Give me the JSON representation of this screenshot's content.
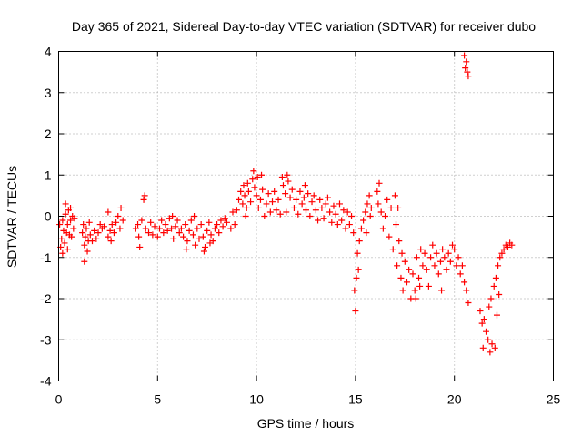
{
  "chart_data": {
    "type": "scatter",
    "title": "Day 365 of 2021, Sidereal Day-to-day VTEC variation (SDTVAR) for receiver dubo",
    "xlabel": "GPS time / hours",
    "ylabel": "SDTVAR / TECUs",
    "xlim": [
      0,
      25
    ],
    "ylim": [
      -4,
      4
    ],
    "xticks": [
      0,
      5,
      10,
      15,
      20,
      25
    ],
    "yticks": [
      -4,
      -3,
      -2,
      -1,
      0,
      1,
      2,
      3,
      4
    ],
    "grid": true,
    "marker": "+",
    "color": "#ff0000",
    "series": [
      {
        "name": "SDTVAR",
        "points": [
          [
            0.05,
            -0.2
          ],
          [
            0.1,
            -0.75
          ],
          [
            0.15,
            -0.55
          ],
          [
            0.2,
            -0.1
          ],
          [
            0.25,
            -0.35
          ],
          [
            0.3,
            -0.65
          ],
          [
            0.35,
            0.05
          ],
          [
            0.4,
            -0.4
          ],
          [
            0.45,
            -0.2
          ],
          [
            0.5,
            0.15
          ],
          [
            0.55,
            -0.45
          ],
          [
            0.6,
            -0.1
          ],
          [
            0.65,
            -0.5
          ],
          [
            0.7,
            0.0
          ],
          [
            0.75,
            -0.3
          ],
          [
            0.8,
            -0.05
          ],
          [
            0.35,
            0.3
          ],
          [
            0.45,
            -0.8
          ],
          [
            0.6,
            0.2
          ],
          [
            0.2,
            -0.9
          ],
          [
            1.2,
            -0.4
          ],
          [
            1.25,
            -0.2
          ],
          [
            1.3,
            -0.7
          ],
          [
            1.3,
            -1.1
          ],
          [
            1.35,
            -0.5
          ],
          [
            1.4,
            -0.3
          ],
          [
            1.5,
            -0.6
          ],
          [
            1.55,
            -0.15
          ],
          [
            1.6,
            -0.45
          ],
          [
            1.7,
            -0.6
          ],
          [
            1.8,
            -0.35
          ],
          [
            1.9,
            -0.55
          ],
          [
            2.0,
            -0.4
          ],
          [
            2.1,
            -0.2
          ],
          [
            2.2,
            -0.3
          ],
          [
            2.3,
            -0.25
          ],
          [
            2.5,
            -0.5
          ],
          [
            2.6,
            -0.35
          ],
          [
            2.7,
            -0.2
          ],
          [
            2.5,
            0.1
          ],
          [
            2.8,
            -0.4
          ],
          [
            2.9,
            -0.15
          ],
          [
            3.0,
            0.0
          ],
          [
            3.1,
            -0.3
          ],
          [
            3.15,
            0.2
          ],
          [
            3.25,
            -0.1
          ],
          [
            1.45,
            -0.85
          ],
          [
            2.65,
            -0.6
          ],
          [
            3.9,
            -0.3
          ],
          [
            4.0,
            -0.2
          ],
          [
            4.05,
            -0.5
          ],
          [
            4.1,
            -0.75
          ],
          [
            4.2,
            -0.1
          ],
          [
            4.3,
            0.4
          ],
          [
            4.35,
            0.5
          ],
          [
            4.4,
            -0.3
          ],
          [
            4.55,
            -0.4
          ],
          [
            4.65,
            -0.15
          ],
          [
            4.75,
            -0.45
          ],
          [
            4.85,
            -0.25
          ],
          [
            5.0,
            -0.5
          ],
          [
            5.1,
            -0.3
          ],
          [
            5.2,
            -0.1
          ],
          [
            5.3,
            -0.4
          ],
          [
            5.4,
            -0.2
          ],
          [
            5.5,
            -0.35
          ],
          [
            5.6,
            -0.05
          ],
          [
            5.7,
            -0.3
          ],
          [
            5.8,
            -0.55
          ],
          [
            5.9,
            -0.25
          ],
          [
            6.0,
            -0.1
          ],
          [
            6.1,
            -0.4
          ],
          [
            6.2,
            -0.3
          ],
          [
            6.3,
            -0.5
          ],
          [
            6.4,
            -0.2
          ],
          [
            6.5,
            -0.6
          ],
          [
            6.6,
            -0.35
          ],
          [
            6.7,
            -0.1
          ],
          [
            6.8,
            -0.45
          ],
          [
            6.9,
            -0.7
          ],
          [
            7.0,
            -0.3
          ],
          [
            7.1,
            -0.55
          ],
          [
            7.2,
            -0.2
          ],
          [
            7.3,
            -0.5
          ],
          [
            7.4,
            -0.75
          ],
          [
            7.5,
            -0.35
          ],
          [
            7.6,
            -0.15
          ],
          [
            7.7,
            -0.45
          ],
          [
            7.8,
            -0.6
          ],
          [
            7.9,
            -0.3
          ],
          [
            8.0,
            -0.2
          ],
          [
            8.1,
            -0.4
          ],
          [
            8.2,
            -0.1
          ],
          [
            8.3,
            -0.25
          ],
          [
            8.4,
            -0.05
          ],
          [
            8.5,
            -0.15
          ],
          [
            6.45,
            -0.8
          ],
          [
            7.35,
            -0.85
          ],
          [
            5.75,
            0.0
          ],
          [
            6.85,
            0.0
          ],
          [
            7.65,
            -0.65
          ],
          [
            8.7,
            -0.3
          ],
          [
            8.8,
            0.1
          ],
          [
            8.9,
            -0.2
          ],
          [
            9.0,
            0.15
          ],
          [
            9.1,
            0.4
          ],
          [
            9.2,
            0.6
          ],
          [
            9.3,
            0.3
          ],
          [
            9.35,
            0.75
          ],
          [
            9.4,
            0.5
          ],
          [
            9.5,
            0.2
          ],
          [
            9.55,
            0.8
          ],
          [
            9.6,
            0.6
          ],
          [
            9.7,
            0.35
          ],
          [
            9.8,
            0.9
          ],
          [
            9.85,
            1.1
          ],
          [
            9.9,
            0.7
          ],
          [
            10.0,
            0.5
          ],
          [
            10.05,
            0.95
          ],
          [
            10.1,
            0.2
          ],
          [
            10.2,
            0.4
          ],
          [
            10.3,
            0.65
          ],
          [
            10.4,
            0.0
          ],
          [
            10.5,
            0.3
          ],
          [
            10.6,
            0.55
          ],
          [
            10.7,
            0.1
          ],
          [
            10.8,
            0.35
          ],
          [
            10.9,
            0.6
          ],
          [
            11.0,
            0.15
          ],
          [
            11.1,
            0.4
          ],
          [
            11.2,
            0.05
          ],
          [
            11.3,
            0.95
          ],
          [
            11.35,
            0.75
          ],
          [
            11.45,
            0.55
          ],
          [
            11.5,
            0.1
          ],
          [
            11.6,
            0.85
          ],
          [
            11.7,
            0.45
          ],
          [
            11.8,
            0.65
          ],
          [
            11.9,
            0.2
          ],
          [
            12.0,
            0.4
          ],
          [
            12.1,
            0.05
          ],
          [
            12.2,
            0.6
          ],
          [
            12.3,
            0.3
          ],
          [
            12.4,
            0.45
          ],
          [
            12.5,
            0.15
          ],
          [
            12.6,
            0.55
          ],
          [
            12.7,
            0.0
          ],
          [
            12.8,
            0.35
          ],
          [
            12.9,
            0.5
          ],
          [
            13.0,
            0.15
          ],
          [
            13.1,
            -0.1
          ],
          [
            13.2,
            0.4
          ],
          [
            13.3,
            0.2
          ],
          [
            13.4,
            -0.05
          ],
          [
            13.5,
            0.3
          ],
          [
            13.6,
            0.45
          ],
          [
            13.7,
            0.1
          ],
          [
            13.8,
            -0.15
          ],
          [
            13.9,
            0.25
          ],
          [
            14.0,
            0.05
          ],
          [
            14.1,
            -0.2
          ],
          [
            14.2,
            0.3
          ],
          [
            14.3,
            -0.1
          ],
          [
            14.4,
            0.15
          ],
          [
            14.5,
            -0.3
          ],
          [
            14.6,
            0.1
          ],
          [
            14.7,
            -0.2
          ],
          [
            14.8,
            0.0
          ],
          [
            14.9,
            -0.4
          ],
          [
            11.55,
            1.0
          ],
          [
            12.45,
            0.75
          ],
          [
            9.45,
            0.0
          ],
          [
            10.25,
            1.0
          ],
          [
            14.95,
            -1.8
          ],
          [
            15.0,
            -2.3
          ],
          [
            15.05,
            -1.5
          ],
          [
            15.1,
            -0.9
          ],
          [
            15.15,
            -1.3
          ],
          [
            15.2,
            -0.6
          ],
          [
            15.3,
            -0.3
          ],
          [
            15.4,
            -0.1
          ],
          [
            15.5,
            0.1
          ],
          [
            15.55,
            -0.4
          ],
          [
            15.6,
            0.3
          ],
          [
            15.7,
            0.5
          ],
          [
            15.75,
            0.0
          ],
          [
            15.8,
            0.2
          ],
          [
            16.1,
            0.6
          ],
          [
            16.15,
            0.3
          ],
          [
            16.2,
            0.8
          ],
          [
            16.3,
            0.1
          ],
          [
            16.4,
            -0.3
          ],
          [
            16.5,
            0.0
          ],
          [
            16.6,
            0.4
          ],
          [
            16.7,
            -0.5
          ],
          [
            16.8,
            0.2
          ],
          [
            16.9,
            -0.8
          ],
          [
            17.0,
            0.5
          ],
          [
            17.05,
            -0.2
          ],
          [
            17.1,
            -1.2
          ],
          [
            17.2,
            -0.6
          ],
          [
            17.3,
            -1.5
          ],
          [
            17.35,
            -0.9
          ],
          [
            17.4,
            -1.8
          ],
          [
            17.5,
            -1.1
          ],
          [
            17.6,
            -1.6
          ],
          [
            17.7,
            -1.3
          ],
          [
            17.8,
            -2.0
          ],
          [
            17.9,
            -1.4
          ],
          [
            18.0,
            -1.8
          ],
          [
            18.1,
            -1.0
          ],
          [
            18.2,
            -1.5
          ],
          [
            18.3,
            -0.8
          ],
          [
            18.4,
            -1.2
          ],
          [
            18.5,
            -0.9
          ],
          [
            18.6,
            -1.3
          ],
          [
            18.7,
            -1.7
          ],
          [
            18.8,
            -1.0
          ],
          [
            18.9,
            -0.7
          ],
          [
            19.0,
            -1.2
          ],
          [
            19.1,
            -0.9
          ],
          [
            19.2,
            -1.4
          ],
          [
            19.3,
            -1.1
          ],
          [
            19.4,
            -0.8
          ],
          [
            19.5,
            -1.0
          ],
          [
            19.6,
            -1.3
          ],
          [
            19.7,
            -0.9
          ],
          [
            19.8,
            -1.1
          ],
          [
            19.9,
            -0.7
          ],
          [
            20.0,
            -0.8
          ],
          [
            20.1,
            -1.2
          ],
          [
            20.2,
            -1.0
          ],
          [
            20.3,
            -1.4
          ],
          [
            20.4,
            -1.2
          ],
          [
            20.5,
            -1.6
          ],
          [
            20.6,
            -1.8
          ],
          [
            20.7,
            -2.1
          ],
          [
            17.15,
            0.2
          ],
          [
            18.05,
            -2.0
          ],
          [
            18.25,
            -1.7
          ],
          [
            19.35,
            -1.8
          ],
          [
            20.5,
            3.9
          ],
          [
            20.55,
            3.6
          ],
          [
            20.6,
            3.75
          ],
          [
            20.65,
            3.5
          ],
          [
            20.7,
            3.4
          ],
          [
            21.3,
            -2.3
          ],
          [
            21.4,
            -2.6
          ],
          [
            21.45,
            -3.2
          ],
          [
            21.5,
            -2.5
          ],
          [
            21.6,
            -2.8
          ],
          [
            21.7,
            -3.0
          ],
          [
            21.75,
            -2.2
          ],
          [
            21.8,
            -3.3
          ],
          [
            21.85,
            -2.0
          ],
          [
            21.9,
            -3.1
          ],
          [
            22.0,
            -1.7
          ],
          [
            22.05,
            -3.2
          ],
          [
            22.1,
            -1.5
          ],
          [
            22.2,
            -1.2
          ],
          [
            22.3,
            -1.0
          ],
          [
            22.4,
            -0.9
          ],
          [
            22.5,
            -0.8
          ],
          [
            22.6,
            -0.7
          ],
          [
            22.7,
            -0.75
          ],
          [
            22.8,
            -0.65
          ],
          [
            22.9,
            -0.7
          ],
          [
            22.15,
            -2.4
          ],
          [
            22.25,
            -1.9
          ]
        ]
      }
    ]
  }
}
